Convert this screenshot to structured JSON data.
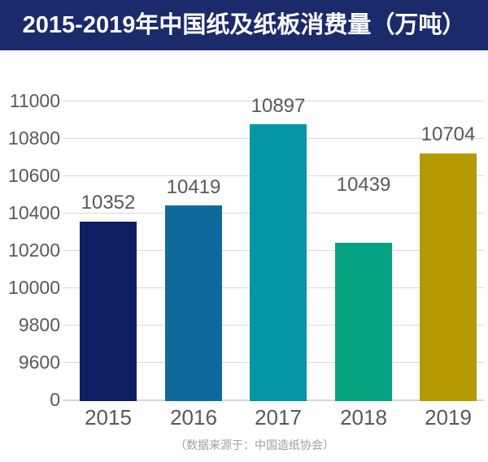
{
  "header": {
    "title": "2015-2019年中国纸及纸板消费量（万吨）"
  },
  "footer": {
    "source_note": "（数据来源于：中国造纸协会）"
  },
  "chart_data": {
    "type": "bar",
    "title": "2015-2019年中国纸及纸板消费量（万吨）",
    "categories": [
      "2015",
      "2016",
      "2017",
      "2018",
      "2019"
    ],
    "values": [
      10352,
      10419,
      10897,
      10439,
      10704
    ],
    "unit": "万吨",
    "xlabel": "",
    "ylabel": "",
    "y_ticks": [
      11000,
      10800,
      10600,
      10400,
      10200,
      10000,
      9800,
      9600,
      0
    ],
    "axis_break": true,
    "grid": true,
    "legend": false,
    "bar_colors": [
      "#0e1f62",
      "#0e6a9d",
      "#0396a4",
      "#06a383",
      "#b59a02"
    ],
    "visual_note": "In the source image the 2018 bar is drawn shorter (≈10240 on the axis) than its labeled value 10439; all data labels sit above the bars in gray."
  },
  "colors": {
    "header_bg": "#1b2a6b",
    "header_text": "#ffffff",
    "gridline": "#d9d9d9",
    "tick_label": "#595959",
    "value_label": "#595959",
    "category_label": "#595959",
    "source_text": "#9e9e9e",
    "background": "#ffffff"
  }
}
